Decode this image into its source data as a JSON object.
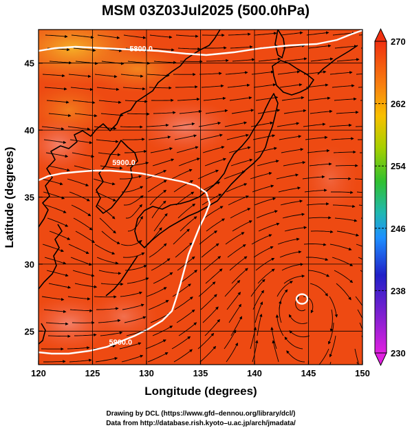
{
  "title": "MSM 03Z03Jul2025 (500.0hPa)",
  "x_axis": {
    "label": "Longitude (degrees)",
    "min": 120,
    "max": 150,
    "ticks": [
      {
        "value": 120,
        "label": "120"
      },
      {
        "value": 125,
        "label": "125"
      },
      {
        "value": 130,
        "label": "130"
      },
      {
        "value": 135,
        "label": "135"
      },
      {
        "value": 140,
        "label": "140"
      },
      {
        "value": 145,
        "label": "145"
      },
      {
        "value": 150,
        "label": "150"
      }
    ]
  },
  "y_axis": {
    "label": "Latitude  (degrees)",
    "min": 22.5,
    "max": 47.5,
    "ticks": [
      {
        "value": 25,
        "label": "25"
      },
      {
        "value": 30,
        "label": "30"
      },
      {
        "value": 35,
        "label": "35"
      },
      {
        "value": 40,
        "label": "40"
      },
      {
        "value": 45,
        "label": "45"
      }
    ]
  },
  "colorbar": {
    "min": 230,
    "max": 270,
    "labels": [
      {
        "value": 270,
        "label": "270"
      },
      {
        "value": 262,
        "label": "262"
      },
      {
        "value": 254,
        "label": "254"
      },
      {
        "value": 246,
        "label": "246"
      },
      {
        "value": 238,
        "label": "238"
      },
      {
        "value": 230,
        "label": "230"
      }
    ],
    "colors": [
      "#e020e0",
      "#2020c8",
      "#1e90ff",
      "#20b0b0",
      "#30c030",
      "#c8d000",
      "#f8a000",
      "#f03010"
    ]
  },
  "contours": [
    {
      "label": "5800.0",
      "lon": 129.5,
      "lat": 46.1
    },
    {
      "label": "5900.0",
      "lon": 127.9,
      "lat": 37.6
    },
    {
      "label": "5900.0",
      "lon": 127.6,
      "lat": 24.2
    }
  ],
  "high_center": {
    "lon": 144.4,
    "lat": 27.4
  },
  "credits": [
    "Drawing by DCL (https://www.gfd–dennou.org/library/dcl/)",
    "Data from http://database.rish.kyoto–u.ac.jp/arch/jmadata/"
  ],
  "colors": {
    "field_base": "#ee4a12",
    "field_warm": "#f6a020",
    "field_pink": "#f4826a",
    "contour": "#ffffff",
    "coast": "#000000"
  }
}
